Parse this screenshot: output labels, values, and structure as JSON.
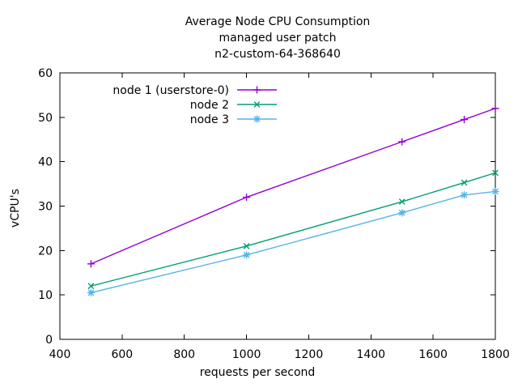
{
  "title_lines": [
    "Average Node CPU Consumption",
    "managed user patch",
    "n2-custom-64-368640"
  ],
  "chart_data": {
    "type": "line",
    "x": [
      500,
      1000,
      1500,
      1700,
      1800
    ],
    "series": [
      {
        "name": "node 1 (userstore-0)",
        "color": "#9400d3",
        "marker": "plus",
        "values": [
          17,
          32,
          44.5,
          49.5,
          52
        ]
      },
      {
        "name": "node 2",
        "color": "#009e73",
        "marker": "cross",
        "values": [
          12,
          21,
          31,
          35.3,
          37.5
        ]
      },
      {
        "name": "node 3",
        "color": "#56b4e9",
        "marker": "asterisk",
        "values": [
          10.5,
          19,
          28.5,
          32.5,
          33.3
        ]
      }
    ],
    "xlabel": "requests per second",
    "ylabel": "vCPU's",
    "xlim": [
      400,
      1800
    ],
    "ylim": [
      0,
      60
    ],
    "xticks": [
      400,
      600,
      800,
      1000,
      1200,
      1400,
      1600,
      1800
    ],
    "yticks": [
      0,
      10,
      20,
      30,
      40,
      50,
      60
    ],
    "legend_position": "top-left-inside",
    "grid": false,
    "axis_color": "#000000",
    "background_color": "#ffffff"
  }
}
